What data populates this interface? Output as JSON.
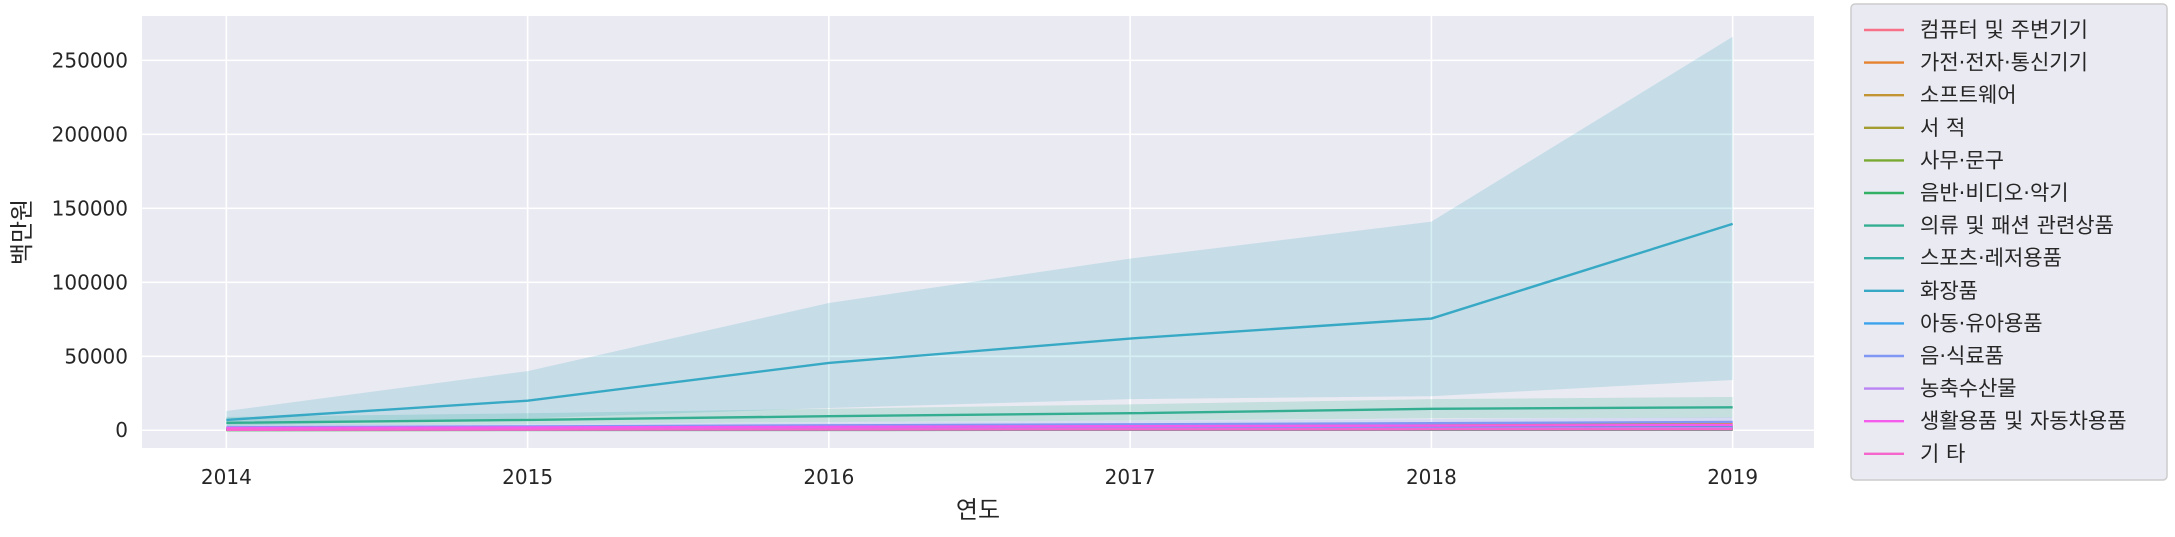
{
  "chart_data": {
    "type": "line",
    "title": "",
    "xlabel": "연도",
    "ylabel": "백만원",
    "x": [
      2014,
      2015,
      2016,
      2017,
      2018,
      2019
    ],
    "xlim": [
      2013.72,
      2019.27
    ],
    "ylim": [
      -12000,
      280000
    ],
    "yticks": [
      0,
      50000,
      100000,
      150000,
      200000,
      250000
    ],
    "grid": true,
    "legend_position": "outside-right",
    "band_note": "shaded band = confidence interval",
    "series": [
      {
        "name": "컴퓨터 및 주변기기",
        "color": "#f77189",
        "values": [
          900,
          1200,
          1500,
          1700,
          2000,
          2200
        ],
        "ci": [
          [
            400,
            1500
          ],
          [
            500,
            1900
          ],
          [
            700,
            2400
          ],
          [
            800,
            2700
          ],
          [
            900,
            3200
          ],
          [
            1000,
            3500
          ]
        ]
      },
      {
        "name": "가전·전자·통신기기",
        "color": "#e5822f",
        "values": [
          1200,
          1800,
          2500,
          3000,
          3600,
          4000
        ],
        "ci": [
          [
            600,
            2000
          ],
          [
            900,
            2800
          ],
          [
            1300,
            3800
          ],
          [
            1600,
            4500
          ],
          [
            1900,
            5400
          ],
          [
            2100,
            6000
          ]
        ]
      },
      {
        "name": "소프트웨어",
        "color": "#c39532",
        "values": [
          300,
          400,
          500,
          550,
          600,
          650
        ],
        "ci": [
          [
            100,
            600
          ],
          [
            150,
            700
          ],
          [
            200,
            850
          ],
          [
            250,
            900
          ],
          [
            250,
            1000
          ],
          [
            300,
            1100
          ]
        ]
      },
      {
        "name": "서 적",
        "color": "#a29c31",
        "values": [
          600,
          800,
          1000,
          1100,
          1300,
          1400
        ],
        "ci": [
          [
            300,
            1000
          ],
          [
            400,
            1300
          ],
          [
            500,
            1600
          ],
          [
            550,
            1800
          ],
          [
            650,
            2100
          ],
          [
            700,
            2300
          ]
        ]
      },
      {
        "name": "사무·문구",
        "color": "#7aa931",
        "values": [
          200,
          300,
          400,
          450,
          500,
          550
        ],
        "ci": [
          [
            100,
            400
          ],
          [
            150,
            500
          ],
          [
            200,
            650
          ],
          [
            220,
            700
          ],
          [
            250,
            800
          ],
          [
            270,
            850
          ]
        ]
      },
      {
        "name": "음반·비디오·악기",
        "color": "#32b166",
        "values": [
          150,
          200,
          250,
          280,
          300,
          320
        ],
        "ci": [
          [
            50,
            300
          ],
          [
            80,
            350
          ],
          [
            100,
            420
          ],
          [
            110,
            460
          ],
          [
            120,
            500
          ],
          [
            130,
            530
          ]
        ]
      },
      {
        "name": "의류 및 패션 관련상품",
        "color": "#34ae91",
        "values": [
          5000,
          7000,
          9500,
          11500,
          14500,
          15500
        ],
        "ci": [
          [
            3000,
            9000
          ],
          [
            4200,
            11500
          ],
          [
            5500,
            14500
          ],
          [
            6500,
            17500
          ],
          [
            8000,
            21000
          ],
          [
            8500,
            22500
          ]
        ]
      },
      {
        "name": "스포츠·레저용품",
        "color": "#36ada4",
        "values": [
          800,
          1100,
          1500,
          1800,
          2200,
          2500
        ],
        "ci": [
          [
            400,
            1400
          ],
          [
            600,
            1800
          ],
          [
            800,
            2400
          ],
          [
            900,
            2900
          ],
          [
            1100,
            3500
          ],
          [
            1200,
            4000
          ]
        ]
      },
      {
        "name": "화장품",
        "color": "#38a9c5",
        "values": [
          7000,
          20000,
          45500,
          62000,
          75500,
          139500
        ],
        "ci": [
          [
            3000,
            13000
          ],
          [
            8000,
            40000
          ],
          [
            15000,
            86000
          ],
          [
            21000,
            116000
          ],
          [
            23000,
            141000
          ],
          [
            34000,
            266000
          ]
        ]
      },
      {
        "name": "아동·유아용품",
        "color": "#3ba3ec",
        "values": [
          600,
          800,
          1100,
          1300,
          1500,
          1700
        ],
        "ci": [
          [
            300,
            1000
          ],
          [
            400,
            1300
          ],
          [
            500,
            1700
          ],
          [
            600,
            2000
          ],
          [
            700,
            2300
          ],
          [
            800,
            2600
          ]
        ]
      },
      {
        "name": "음·식료품",
        "color": "#8197f4",
        "values": [
          2000,
          2600,
          3300,
          4000,
          4800,
          5600
        ],
        "ci": [
          [
            1000,
            3500
          ],
          [
            1300,
            4200
          ],
          [
            1600,
            5200
          ],
          [
            2000,
            6300
          ],
          [
            2300,
            7500
          ],
          [
            2700,
            8800
          ]
        ]
      },
      {
        "name": "농축수산물",
        "color": "#bb83f4",
        "values": [
          500,
          700,
          900,
          1000,
          1200,
          1400
        ],
        "ci": [
          [
            200,
            900
          ],
          [
            300,
            1100
          ],
          [
            400,
            1400
          ],
          [
            450,
            1600
          ],
          [
            550,
            1900
          ],
          [
            650,
            2200
          ]
        ]
      },
      {
        "name": "생활용품 및 자동차용품",
        "color": "#f45deb",
        "values": [
          1500,
          1900,
          2300,
          2700,
          3100,
          3500
        ],
        "ci": [
          [
            800,
            2500
          ],
          [
            1000,
            3000
          ],
          [
            1200,
            3600
          ],
          [
            1400,
            4200
          ],
          [
            1600,
            4800
          ],
          [
            1800,
            5400
          ]
        ]
      },
      {
        "name": "기 타",
        "color": "#f565cc",
        "values": [
          300,
          400,
          500,
          550,
          600,
          650
        ],
        "ci": [
          [
            100,
            600
          ],
          [
            150,
            700
          ],
          [
            200,
            850
          ],
          [
            250,
            900
          ],
          [
            250,
            1000
          ],
          [
            300,
            1100
          ]
        ]
      }
    ]
  }
}
